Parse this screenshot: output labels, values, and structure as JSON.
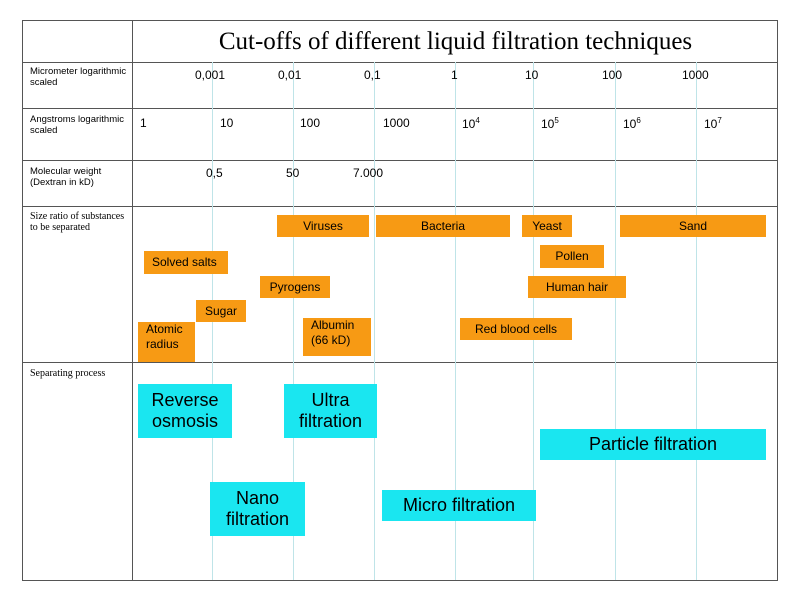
{
  "title": "Cut-offs of different liquid filtration techniques",
  "rows": {
    "micrometer": "Micrometer logarithmic scaled",
    "angstroms": "Angstroms logarithmic scaled",
    "molecular": "Molecular weight (Dextran in kD)",
    "size_ratio": "Size ratio of substances to be separated",
    "process": "Separating process"
  },
  "micrometer_ticks": [
    "0,001",
    "0,01",
    "0,1",
    "1",
    "10",
    "100",
    "1000"
  ],
  "angstrom_ticks": {
    "t1": "1",
    "t2": "10",
    "t3": "100",
    "t4": "1000",
    "t5_base": "10",
    "t5_exp": "4",
    "t6_base": "10",
    "t6_exp": "5",
    "t7_base": "10",
    "t7_exp": "6",
    "t8_base": "10",
    "t8_exp": "7"
  },
  "molecular_ticks": [
    "0,5",
    "50",
    "7.000"
  ],
  "substances": {
    "viruses": "Viruses",
    "bacteria": "Bacteria",
    "yeast": "Yeast",
    "sand": "Sand",
    "solved_salts": "Solved salts",
    "pollen": "Pollen",
    "pyrogens": "Pyrogens",
    "human_hair": "Human hair",
    "sugar": "Sugar",
    "atomic_radius_1": "Atomic",
    "atomic_radius_2": "radius",
    "albumin_1": "Albumin",
    "albumin_2": "(66 kD)",
    "red_blood_cells": "Red blood cells"
  },
  "processes": {
    "reverse_osmosis_1": "Reverse",
    "reverse_osmosis_2": "osmosis",
    "ultra_1": "Ultra",
    "ultra_2": "filtration",
    "particle": "Particle filtration",
    "nano_1": "Nano",
    "nano_2": "filtration",
    "micro": "Micro filtration"
  },
  "colors": {
    "substance": "#f79a14",
    "process": "#1ae6f0",
    "gridline": "#bfe4e8"
  }
}
